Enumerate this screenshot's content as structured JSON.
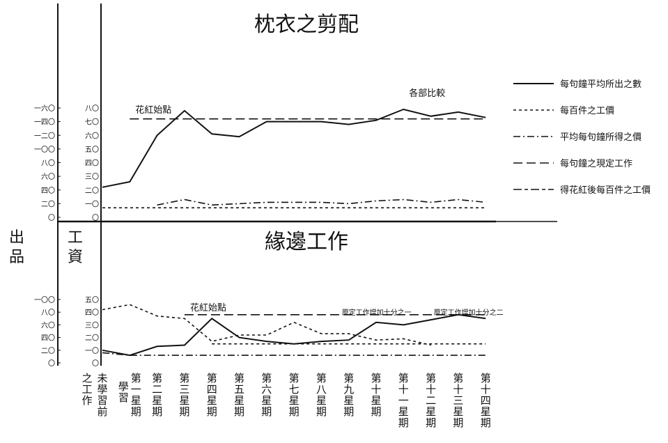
{
  "axis_titles": {
    "output": "出品",
    "wage": "工資"
  },
  "chart_data": [
    {
      "type": "line",
      "title": "枕衣之剪配",
      "x_labels": [
        "未學習前之工作",
        "第一星期學習",
        "第二星期",
        "第三星期",
        "第四星期",
        "第五星期",
        "第六星期",
        "第七星期",
        "第八星期",
        "第九星期",
        "第十星期",
        "第十一星期",
        "第十二星期",
        "第十三星期",
        "第十四星期"
      ],
      "y_outer_ticks": [
        "〇",
        "二〇",
        "四〇",
        "六〇",
        "八〇",
        "一〇〇",
        "一二〇",
        "一四〇",
        "一六〇"
      ],
      "y_inner_ticks": [
        "〇",
        "一〇",
        "二〇",
        "三〇",
        "四〇",
        "五〇",
        "六〇",
        "七〇",
        "八〇"
      ],
      "ylim": [
        0,
        80
      ],
      "series": [
        {
          "name": "每句鐘平均所出之數",
          "style": "solid",
          "values": [
            22,
            26,
            60,
            78,
            61,
            59,
            70,
            70,
            70,
            68,
            71,
            79,
            74,
            77,
            73
          ]
        },
        {
          "name": "得花紅後每百件之工價",
          "style": "dash-dot",
          "values": [
            null,
            null,
            9,
            13,
            9,
            10,
            11,
            11,
            11,
            10,
            12,
            13,
            11,
            13,
            11
          ]
        },
        {
          "name": "每句鐘之現定工作",
          "style": "long-dash",
          "values": [
            null,
            72,
            72,
            72,
            72,
            72,
            72,
            72,
            72,
            72,
            72,
            72,
            72,
            72,
            72
          ]
        },
        {
          "name": "平均每句鐘所得之價",
          "style": "short-dash",
          "values": [
            7,
            7,
            7,
            7,
            7,
            7,
            7,
            7,
            7,
            7,
            7,
            7,
            7,
            7,
            7
          ]
        }
      ],
      "annotations": [
        {
          "text": "花紅始點",
          "x_index": 1
        },
        {
          "text": "各部比較",
          "x_index": 11
        }
      ]
    },
    {
      "type": "line",
      "title": "緣邊工作",
      "x_labels": [
        "未學習前之工作",
        "第一星期學習",
        "第二星期",
        "第三星期",
        "第四星期",
        "第五星期",
        "第六星期",
        "第七星期",
        "第八星期",
        "第九星期",
        "第十星期",
        "第十一星期",
        "第十二星期",
        "第十三星期",
        "第十四星期"
      ],
      "y_outer_ticks": [
        "〇",
        "二〇",
        "四〇",
        "六〇",
        "八〇",
        "一〇〇"
      ],
      "y_inner_ticks": [
        "〇",
        "一〇",
        "二〇",
        "三〇",
        "四〇",
        "五〇"
      ],
      "ylim": [
        0,
        50
      ],
      "series": [
        {
          "name": "每句鐘平均所出之數",
          "style": "solid",
          "values": [
            10,
            6,
            13,
            14,
            35,
            20,
            17,
            15,
            17,
            18,
            32,
            30,
            34,
            38,
            35
          ]
        },
        {
          "name": "每百件之工價",
          "style": "short-dash",
          "values": [
            42,
            46,
            37,
            35,
            17,
            22,
            22,
            32,
            23,
            23,
            18,
            19,
            14,
            null,
            null
          ]
        },
        {
          "name": "平均每句鐘所得之價",
          "style": "dash-dot",
          "values": [
            8,
            6,
            6,
            6,
            6,
            6,
            6,
            6,
            6,
            6,
            6,
            6,
            6,
            6,
            6
          ]
        },
        {
          "name": "每句鐘之現定工作",
          "style": "long-dash",
          "values": [
            null,
            null,
            null,
            38,
            38,
            38,
            38,
            38,
            38,
            38,
            38,
            38,
            38,
            38,
            38
          ]
        },
        {
          "name": "得花紅後每百件之工價",
          "style": "short-dash",
          "values": [
            null,
            null,
            null,
            null,
            15,
            15,
            15,
            15,
            15,
            15,
            15,
            15,
            15,
            15,
            15
          ]
        }
      ],
      "annotations": [
        {
          "text": "花紅始點",
          "x_index": 3
        },
        {
          "text": "原定工作增加十分之一",
          "x_index": 9
        },
        {
          "text": "原定工作增加十分之二",
          "x_index": 12
        }
      ]
    }
  ],
  "legend": [
    {
      "label": "每句鐘平均所出之數",
      "style": "solid"
    },
    {
      "label": "每百件之工價",
      "style": "short-dash"
    },
    {
      "label": "平均每句鐘所得之價",
      "style": "dash-dot"
    },
    {
      "label": "每句鐘之現定工作",
      "style": "long-dash"
    },
    {
      "label": "得花紅後每百件之工價",
      "style": "long-short-dash"
    }
  ]
}
